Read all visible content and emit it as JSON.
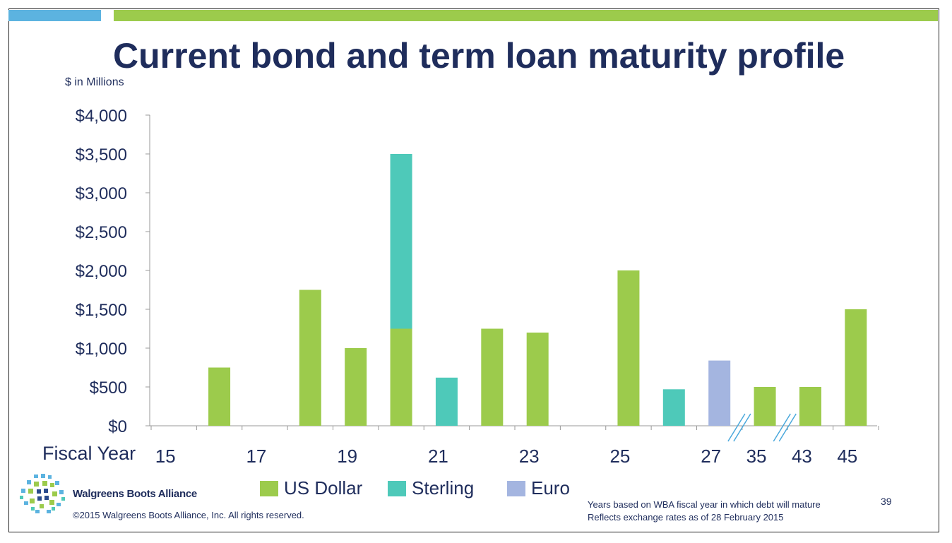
{
  "slide": {
    "title": "Current bond and term loan maturity profile",
    "units_label": "$ in Millions",
    "x_axis_label": "Fiscal Year",
    "page_number": "39",
    "company_name": "Walgreens Boots Alliance",
    "copyright": "©2015 Walgreens Boots Alliance, Inc. All rights reserved.",
    "footnote_1": "Years based on WBA fiscal year in which debt will mature",
    "footnote_2": "Reflects exchange rates as of 28 February 2015"
  },
  "colors": {
    "us_dollar": "#9ccb4c",
    "sterling": "#4ec9b9",
    "euro": "#a4b5e0",
    "text": "#1f2d5c",
    "accent_blue": "#5cb3e0"
  },
  "chart_data": {
    "type": "bar",
    "stacked": true,
    "ylim": [
      0,
      4000
    ],
    "y_ticks": [
      "$0",
      "$500",
      "$1,000",
      "$1,500",
      "$2,000",
      "$2,500",
      "$3,000",
      "$3,500",
      "$4,000"
    ],
    "x_tick_labels": [
      "15",
      "17",
      "19",
      "21",
      "23",
      "25",
      "27",
      "35",
      "43",
      "45"
    ],
    "axis_breaks_after": [
      "27",
      "35"
    ],
    "categories": [
      "15",
      "16",
      "17",
      "18",
      "19",
      "20",
      "21",
      "22",
      "23",
      "24",
      "25",
      "26",
      "27",
      "35",
      "43",
      "45"
    ],
    "series": [
      {
        "name": "US Dollar",
        "color": "#9ccb4c",
        "values": [
          0,
          750,
          0,
          1750,
          1000,
          1250,
          0,
          1250,
          1200,
          0,
          2000,
          0,
          0,
          500,
          500,
          1500
        ]
      },
      {
        "name": "Sterling",
        "color": "#4ec9b9",
        "values": [
          0,
          0,
          0,
          0,
          0,
          2250,
          620,
          0,
          0,
          0,
          0,
          470,
          0,
          0,
          0,
          0
        ]
      },
      {
        "name": "Euro",
        "color": "#a4b5e0",
        "values": [
          0,
          0,
          0,
          0,
          0,
          0,
          0,
          0,
          0,
          0,
          0,
          0,
          840,
          0,
          0,
          0
        ]
      }
    ]
  }
}
